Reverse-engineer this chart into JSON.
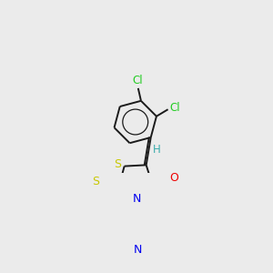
{
  "bg_color": "#ebebeb",
  "atom_colors": {
    "C": "#000000",
    "H": "#3aacac",
    "N": "#0000ee",
    "O": "#ee0000",
    "S": "#c8c800",
    "Cl": "#22cc22"
  },
  "bond_color": "#1a1a1a",
  "figsize": [
    3.0,
    3.0
  ],
  "dpi": 100
}
